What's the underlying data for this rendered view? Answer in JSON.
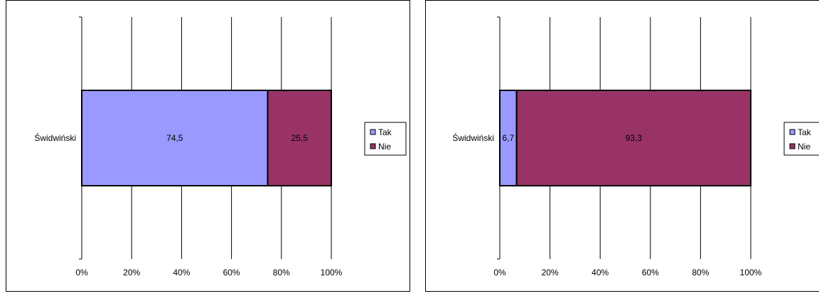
{
  "chart_data": [
    {
      "type": "bar",
      "orientation": "horizontal",
      "stacked": "percent",
      "categories": [
        "Świdwiński"
      ],
      "series": [
        {
          "name": "Tak",
          "values": [
            74.5
          ],
          "labels": [
            "74,5"
          ],
          "color": "#9999ff"
        },
        {
          "name": "Nie",
          "values": [
            25.5
          ],
          "labels": [
            "25,5"
          ],
          "color": "#993366"
        }
      ],
      "xlim": [
        0,
        100
      ],
      "x_ticks": [
        "0%",
        "20%",
        "40%",
        "60%",
        "80%",
        "100%"
      ],
      "grid": true,
      "legend_position": "right"
    },
    {
      "type": "bar",
      "orientation": "horizontal",
      "stacked": "percent",
      "categories": [
        "Świdwiński"
      ],
      "series": [
        {
          "name": "Tak",
          "values": [
            6.7
          ],
          "labels": [
            "6,7"
          ],
          "color": "#9999ff"
        },
        {
          "name": "Nie",
          "values": [
            93.3
          ],
          "labels": [
            "93,3"
          ],
          "color": "#993366"
        }
      ],
      "xlim": [
        0,
        100
      ],
      "x_ticks": [
        "0%",
        "20%",
        "40%",
        "60%",
        "80%",
        "100%"
      ],
      "grid": true,
      "legend_position": "right"
    }
  ]
}
